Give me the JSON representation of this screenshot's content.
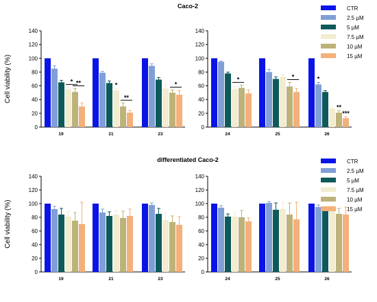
{
  "colors": {
    "CTR": "#0a14e6",
    "2.5 µM": "#7f9fd6",
    "5 µM": "#0e5a5a",
    "7.5 µM": "#f2ecd0",
    "10 µM": "#bdb27a",
    "15 µM": "#f3b07a"
  },
  "chart_data": [
    {
      "type": "bar",
      "title": "Caco-2",
      "ylabel": "Cell viability (%)",
      "ylim": [
        0,
        140
      ],
      "yticks": [
        0,
        20,
        40,
        60,
        80,
        100,
        120,
        140
      ],
      "legend": [
        "CTR",
        "2.5 µM",
        "5 µM",
        "7.5 µM",
        "10 µM",
        "15 µM"
      ],
      "legend_position": "top-right",
      "panels": [
        {
          "categories": [
            "19",
            "21",
            "23"
          ],
          "series": [
            {
              "name": "CTR",
              "values": [
                100,
                100,
                100
              ],
              "errors": [
                0,
                0,
                0
              ]
            },
            {
              "name": "2.5 µM",
              "values": [
                85,
                79,
                89
              ],
              "errors": [
                4,
                2,
                3
              ]
            },
            {
              "name": "5 µM",
              "values": [
                65,
                64,
                69
              ],
              "errors": [
                3,
                3,
                3
              ]
            },
            {
              "name": "7.5 µM",
              "values": [
                55,
                53,
                56
              ],
              "errors": [
                3,
                3,
                6
              ]
            },
            {
              "name": "10 µM",
              "values": [
                51,
                30,
                50
              ],
              "errors": [
                5,
                5,
                4
              ]
            },
            {
              "name": "15 µM",
              "values": [
                30,
                21,
                47
              ],
              "errors": [
                5,
                3,
                6
              ]
            }
          ],
          "annotations": [
            {
              "text": "*",
              "category": "19"
            },
            {
              "text": "**",
              "category": "19"
            },
            {
              "text": "*",
              "category": "21"
            },
            {
              "text": "**",
              "category": "21"
            },
            {
              "text": "*",
              "category": "23"
            }
          ]
        },
        {
          "categories": [
            "24",
            "25",
            "26"
          ],
          "series": [
            {
              "name": "CTR",
              "values": [
                100,
                100,
                100
              ],
              "errors": [
                0,
                0,
                0
              ]
            },
            {
              "name": "2.5 µM",
              "values": [
                95,
                80,
                62
              ],
              "errors": [
                1,
                4,
                3
              ]
            },
            {
              "name": "5 µM",
              "values": [
                78,
                70,
                51
              ],
              "errors": [
                2,
                3,
                2
              ]
            },
            {
              "name": "7.5 µM",
              "values": [
                55,
                73,
                27
              ],
              "errors": [
                4,
                3,
                3
              ]
            },
            {
              "name": "10 µM",
              "values": [
                57,
                59,
                21
              ],
              "errors": [
                4,
                6,
                3
              ]
            },
            {
              "name": "15 µM",
              "values": [
                49,
                51,
                13
              ],
              "errors": [
                5,
                5,
                2
              ]
            }
          ],
          "annotations": [
            {
              "text": "*",
              "category": "24"
            },
            {
              "text": "*",
              "category": "25"
            },
            {
              "text": "*",
              "category": "26"
            },
            {
              "text": "**",
              "category": "26"
            },
            {
              "text": "***",
              "category": "26"
            }
          ]
        }
      ]
    },
    {
      "type": "bar",
      "title": "differentiated Caco-2",
      "ylabel": "Cell viability (%)",
      "ylim": [
        0,
        140
      ],
      "yticks": [
        0,
        20,
        40,
        60,
        80,
        100,
        120,
        140
      ],
      "legend": [
        "CTR",
        "2.5 µM",
        "5 µM",
        "7.5 µM",
        "10 µM",
        "15 µM"
      ],
      "legend_position": "top-right",
      "panels": [
        {
          "categories": [
            "19",
            "21",
            "23"
          ],
          "series": [
            {
              "name": "CTR",
              "values": [
                100,
                100,
                100
              ],
              "errors": [
                0,
                0,
                0
              ]
            },
            {
              "name": "2.5 µM",
              "values": [
                92,
                87,
                98
              ],
              "errors": [
                4,
                5,
                3
              ]
            },
            {
              "name": "5 µM",
              "values": [
                84,
                82,
                85
              ],
              "errors": [
                9,
                6,
                8
              ]
            },
            {
              "name": "7.5 µM",
              "values": [
                81,
                84,
                76
              ],
              "errors": [
                8,
                6,
                10
              ]
            },
            {
              "name": "10 µM",
              "values": [
                75,
                79,
                73
              ],
              "errors": [
                12,
                10,
                9
              ]
            },
            {
              "name": "15 µM",
              "values": [
                70,
                82,
                69
              ],
              "errors": [
                32,
                10,
                12
              ]
            }
          ]
        },
        {
          "categories": [
            "24",
            "25",
            "26"
          ],
          "series": [
            {
              "name": "CTR",
              "values": [
                100,
                100,
                100
              ],
              "errors": [
                0,
                0,
                0
              ]
            },
            {
              "name": "2.5 µM",
              "values": [
                94,
                101,
                95
              ],
              "errors": [
                3,
                2,
                3
              ]
            },
            {
              "name": "5 µM",
              "values": [
                81,
                91,
                92
              ],
              "errors": [
                4,
                10,
                3
              ]
            },
            {
              "name": "7.5 µM",
              "values": [
                81,
                92,
                92
              ],
              "errors": [
                7,
                9,
                5
              ]
            },
            {
              "name": "10 µM",
              "values": [
                80,
                84,
                85
              ],
              "errors": [
                10,
                17,
                8
              ]
            },
            {
              "name": "15 µM",
              "values": [
                74,
                77,
                84
              ],
              "errors": [
                5,
                25,
                11
              ]
            }
          ]
        }
      ]
    }
  ]
}
